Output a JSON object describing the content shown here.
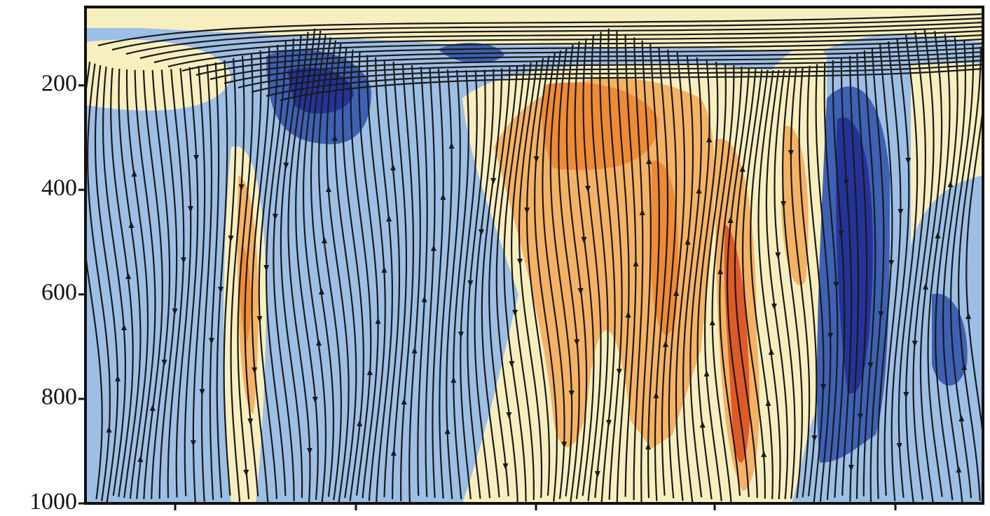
{
  "chart_data": {
    "type": "contour",
    "ylim": [
      1000,
      50
    ],
    "yticks": [
      200,
      400,
      600,
      800,
      1000
    ]
  }
}
